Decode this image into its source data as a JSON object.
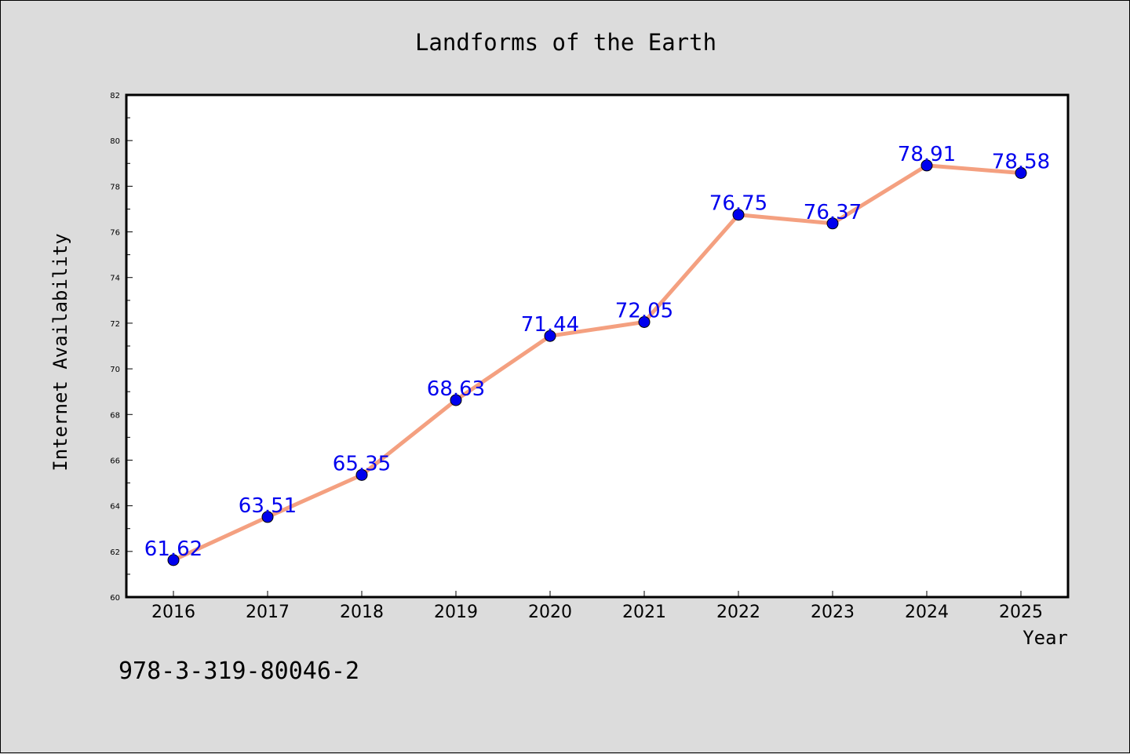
{
  "chart_data": {
    "type": "line",
    "title": "Landforms of the Earth",
    "xlabel": "Year",
    "ylabel": "Internet Availability",
    "categories": [
      "2016",
      "2017",
      "2018",
      "2019",
      "2020",
      "2021",
      "2022",
      "2023",
      "2024",
      "2025"
    ],
    "series": [
      {
        "values": [
          61.62,
          63.51,
          65.35,
          68.63,
          71.44,
          72.05,
          76.75,
          76.37,
          78.91,
          78.58
        ],
        "data_labels": [
          "61.62",
          "63.51",
          "65.35",
          "68.63",
          "71.44",
          "72.05",
          "76.75",
          "76.37",
          "78.91",
          "78.58"
        ],
        "line_color": "#f4a080",
        "marker_color": "#0000ee",
        "label_color": "#0000ee"
      }
    ],
    "ylim": [
      60,
      82
    ],
    "yticks": [
      "60",
      "62",
      "64",
      "66",
      "68",
      "70",
      "72",
      "74",
      "76",
      "78",
      "80",
      "82"
    ],
    "grid": false,
    "legend": "none"
  },
  "annotation": "978-3-319-80046-2",
  "colors": {
    "background": "#dcdcdc",
    "plot_background": "#ffffff",
    "axis": "#000000"
  }
}
